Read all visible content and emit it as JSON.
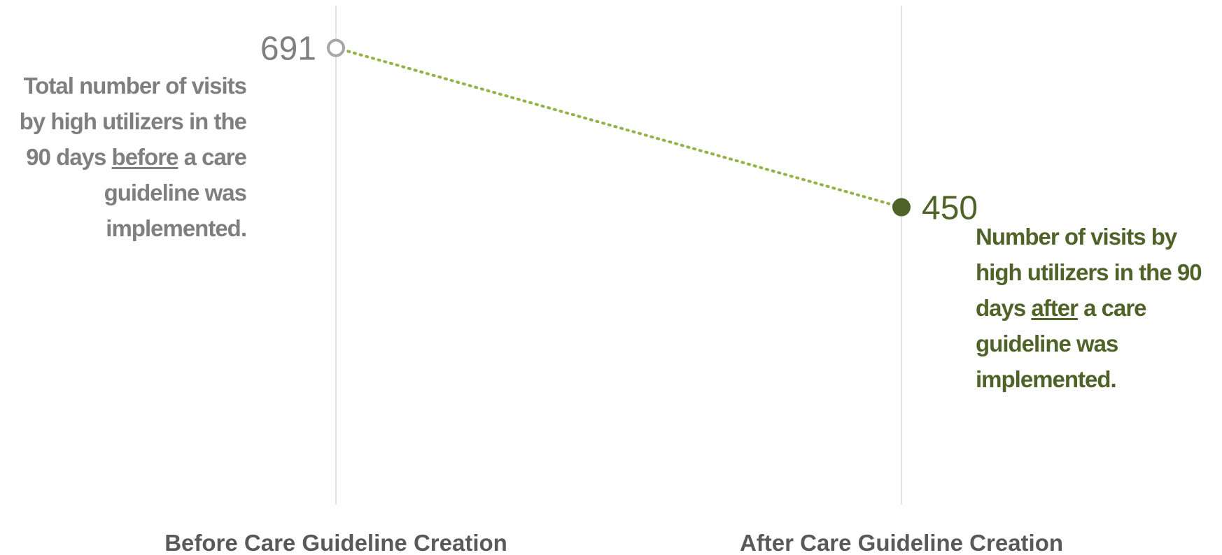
{
  "chart_data": {
    "type": "line",
    "categories": [
      "Before Care Guideline Creation",
      "After Care Guideline Creation"
    ],
    "values": [
      691,
      450
    ],
    "data_labels": [
      "691",
      "450"
    ],
    "annotations": {
      "before": {
        "pre": "Total number of visits by high utilizers in the 90 days ",
        "em": "before",
        "post": " a care guideline was implemented."
      },
      "after": {
        "pre": "Number of visits by high utilizers in the 90 days ",
        "em": "after",
        "post": " a care guideline was implemented."
      }
    },
    "ylim": [
      0,
      755
    ],
    "grid": false,
    "colors": {
      "before_point": "#a6a6a6",
      "after_point": "#4f6228",
      "line": "#92b347",
      "before_text": "#7f7f7f",
      "after_text": "#4f6228",
      "category_lines": "#d9d9d9",
      "category_text": "#595959"
    }
  }
}
